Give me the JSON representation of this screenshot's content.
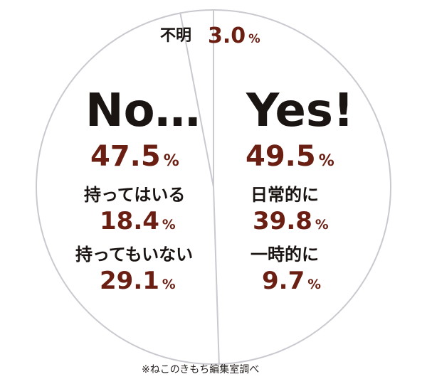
{
  "chart_data": {
    "type": "pie",
    "slices": [
      {
        "label": "Yes!",
        "value": 49.5
      },
      {
        "label": "No…",
        "value": 47.5
      },
      {
        "label": "不明",
        "value": 3.0
      }
    ],
    "breakdown": {
      "yes": [
        {
          "label": "日常的に",
          "value": 39.8
        },
        {
          "label": "一時的に",
          "value": 9.7
        }
      ],
      "no": [
        {
          "label": "持ってはいる",
          "value": 18.4
        },
        {
          "label": "持ってもいない",
          "value": 29.1
        }
      ]
    },
    "unit": "%",
    "source": "※ねこのきもち編集室調べ"
  },
  "colors": {
    "outline": "#c9c9cf",
    "text": "#1a1412",
    "value": "#6b1f12"
  },
  "labels": {
    "unknown_label": "不明",
    "unknown_value": "3.0",
    "no_label": "No…",
    "no_value": "47.5",
    "yes_label": "Yes!",
    "yes_value": "49.5",
    "no_sub1_label": "持ってはいる",
    "no_sub1_value": "18.4",
    "no_sub2_label": "持ってもいない",
    "no_sub2_value": "29.1",
    "yes_sub1_label": "日常的に",
    "yes_sub1_value": "39.8",
    "yes_sub2_label": "一時的に",
    "yes_sub2_value": "9.7",
    "percent": "%"
  }
}
